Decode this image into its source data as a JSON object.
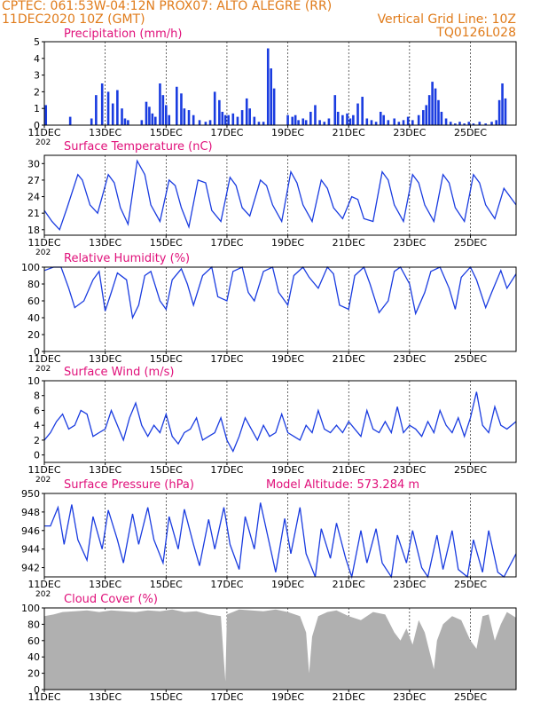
{
  "header": {
    "line1_left": "CPTEC:   061:53W-04:12N   PROX07: ALTO ALEGRE (RR)",
    "line2_left": "11DEC2020 10Z (GMT)",
    "line2_right": "Vertical Grid Line: 10Z",
    "line3_right": "TQ0126L028"
  },
  "colors": {
    "header": "#e07b1a",
    "title": "#e0107a",
    "series": "#1a3ce0",
    "cloud": "#b0b0b0",
    "axis": "#000000"
  },
  "x_axis": {
    "ticks": [
      "11DEC",
      "13DEC",
      "15DEC",
      "17DEC",
      "19DEC",
      "21DEC",
      "23DEC",
      "25DEC"
    ],
    "tick_days": [
      0,
      2,
      4,
      6,
      8,
      10,
      12,
      14
    ],
    "range_days": [
      0,
      15.5
    ],
    "year_label": "202"
  },
  "chart_data": [
    {
      "type": "bar",
      "title": "Precipitation (mm/h)",
      "ylim": [
        0,
        5
      ],
      "yticks": [
        0,
        1,
        2,
        3,
        4,
        5
      ],
      "x": [
        0.05,
        0.85,
        1.55,
        1.7,
        1.9,
        2.1,
        2.25,
        2.4,
        2.55,
        2.65,
        2.75,
        3.2,
        3.35,
        3.45,
        3.55,
        3.65,
        3.8,
        3.9,
        4.0,
        4.1,
        4.35,
        4.5,
        4.6,
        4.75,
        4.9,
        5.1,
        5.3,
        5.45,
        5.6,
        5.75,
        5.85,
        5.95,
        6.05,
        6.2,
        6.35,
        6.5,
        6.65,
        6.75,
        6.9,
        7.05,
        7.2,
        7.35,
        7.45,
        7.55,
        8.0,
        8.15,
        8.25,
        8.35,
        8.5,
        8.6,
        8.75,
        8.9,
        9.05,
        9.2,
        9.35,
        9.55,
        9.65,
        9.8,
        9.95,
        10.05,
        10.15,
        10.3,
        10.45,
        10.6,
        10.75,
        10.9,
        11.05,
        11.15,
        11.3,
        11.5,
        11.65,
        11.8,
        11.95,
        12.1,
        12.3,
        12.45,
        12.55,
        12.65,
        12.75,
        12.85,
        12.95,
        13.05,
        13.2,
        13.35,
        13.5,
        13.65,
        13.8,
        13.95,
        14.1,
        14.3,
        14.5,
        14.7,
        14.85,
        14.95,
        15.05,
        15.15
      ],
      "values": [
        1.2,
        0.5,
        0.4,
        1.8,
        2.5,
        2.0,
        1.3,
        2.1,
        1.0,
        0.4,
        0.3,
        0.3,
        1.4,
        1.1,
        0.7,
        0.5,
        2.5,
        1.8,
        1.2,
        0.6,
        2.3,
        1.9,
        1.0,
        0.9,
        0.6,
        0.3,
        0.2,
        0.3,
        2.0,
        1.5,
        0.8,
        0.6,
        0.6,
        0.7,
        0.5,
        0.9,
        1.6,
        1.0,
        0.5,
        0.2,
        0.2,
        4.6,
        3.4,
        2.2,
        0.6,
        0.5,
        0.6,
        0.3,
        0.4,
        0.3,
        0.8,
        1.2,
        0.3,
        0.2,
        0.4,
        1.8,
        0.8,
        0.6,
        0.7,
        0.4,
        0.6,
        1.3,
        1.7,
        0.4,
        0.3,
        0.2,
        0.8,
        0.6,
        0.3,
        0.4,
        0.2,
        0.3,
        0.5,
        0.3,
        0.6,
        0.9,
        1.2,
        1.8,
        2.6,
        2.2,
        1.5,
        0.8,
        0.4,
        0.2,
        0.1,
        0.2,
        0.1,
        0.2,
        0.1,
        0.2,
        0.1,
        0.2,
        0.3,
        1.5,
        2.5,
        1.6
      ]
    },
    {
      "type": "line",
      "title": "Surface Temperature (nC)",
      "ylim": [
        17,
        31.5
      ],
      "yticks": [
        18,
        21,
        24,
        27,
        30
      ],
      "x": [
        0,
        0.25,
        0.5,
        0.75,
        1.1,
        1.25,
        1.5,
        1.75,
        2.1,
        2.3,
        2.5,
        2.75,
        3.05,
        3.3,
        3.5,
        3.8,
        4.1,
        4.3,
        4.5,
        4.75,
        5.05,
        5.3,
        5.5,
        5.8,
        6.1,
        6.3,
        6.5,
        6.75,
        7.1,
        7.3,
        7.5,
        7.8,
        8.1,
        8.3,
        8.5,
        8.8,
        9.1,
        9.3,
        9.5,
        9.8,
        10.1,
        10.3,
        10.5,
        10.8,
        11.1,
        11.3,
        11.5,
        11.8,
        12.1,
        12.3,
        12.5,
        12.8,
        13.1,
        13.3,
        13.5,
        13.8,
        14.1,
        14.3,
        14.5,
        14.8,
        15.1,
        15.5
      ],
      "values": [
        21.5,
        19.5,
        18.0,
        22.0,
        28.0,
        27.0,
        22.5,
        21.0,
        28.0,
        26.5,
        22.0,
        19.0,
        30.5,
        28.0,
        22.5,
        19.5,
        27.0,
        26.0,
        22.0,
        18.5,
        27.0,
        26.5,
        21.5,
        19.5,
        27.5,
        26.0,
        22.0,
        20.5,
        27.0,
        26.0,
        22.5,
        19.5,
        28.5,
        26.5,
        22.5,
        19.5,
        27.0,
        25.5,
        22.0,
        20.0,
        24.0,
        23.5,
        20.0,
        19.5,
        28.5,
        27.0,
        22.5,
        19.5,
        28.0,
        26.5,
        22.5,
        19.5,
        28.0,
        26.5,
        22.0,
        19.5,
        28.0,
        26.5,
        22.5,
        20.0,
        25.5,
        22.5
      ]
    },
    {
      "type": "line",
      "title": "Relative Humidity (%)",
      "ylim": [
        0,
        100
      ],
      "yticks": [
        0,
        20,
        40,
        60,
        80,
        100
      ],
      "x": [
        0,
        0.3,
        0.55,
        0.8,
        1.0,
        1.3,
        1.6,
        1.8,
        2.0,
        2.2,
        2.4,
        2.7,
        2.9,
        3.1,
        3.3,
        3.5,
        3.8,
        4.0,
        4.2,
        4.5,
        4.7,
        4.9,
        5.2,
        5.5,
        5.7,
        6.0,
        6.2,
        6.5,
        6.7,
        6.9,
        7.2,
        7.5,
        7.7,
        8.0,
        8.2,
        8.5,
        8.7,
        9.0,
        9.3,
        9.5,
        9.7,
        10.0,
        10.2,
        10.5,
        10.7,
        11.0,
        11.3,
        11.5,
        11.7,
        12.0,
        12.2,
        12.5,
        12.7,
        13.0,
        13.3,
        13.5,
        13.7,
        14.0,
        14.2,
        14.5,
        14.7,
        15.0,
        15.2,
        15.5
      ],
      "values": [
        96,
        100,
        100,
        75,
        52,
        60,
        85,
        95,
        48,
        70,
        93,
        85,
        40,
        55,
        90,
        95,
        60,
        50,
        85,
        98,
        80,
        55,
        90,
        100,
        65,
        60,
        95,
        100,
        70,
        60,
        95,
        100,
        70,
        55,
        90,
        100,
        88,
        75,
        100,
        92,
        55,
        50,
        90,
        100,
        80,
        46,
        60,
        95,
        100,
        80,
        45,
        70,
        95,
        100,
        75,
        50,
        88,
        100,
        85,
        52,
        70,
        96,
        75,
        92
      ]
    },
    {
      "type": "line",
      "title": "Surface Wind (m/s)",
      "ylim": [
        -1,
        10
      ],
      "yticks": [
        0,
        2,
        4,
        6,
        8,
        10
      ],
      "x": [
        0,
        0.2,
        0.4,
        0.6,
        0.8,
        1.0,
        1.2,
        1.4,
        1.6,
        1.8,
        2.0,
        2.2,
        2.4,
        2.6,
        2.8,
        3.0,
        3.2,
        3.4,
        3.6,
        3.8,
        4.0,
        4.2,
        4.4,
        4.6,
        4.8,
        5.0,
        5.2,
        5.4,
        5.6,
        5.8,
        6.0,
        6.2,
        6.4,
        6.6,
        6.8,
        7.0,
        7.2,
        7.4,
        7.6,
        7.8,
        8.0,
        8.2,
        8.4,
        8.6,
        8.8,
        9.0,
        9.2,
        9.4,
        9.6,
        9.8,
        10.0,
        10.2,
        10.4,
        10.6,
        10.8,
        11.0,
        11.2,
        11.4,
        11.6,
        11.8,
        12.0,
        12.2,
        12.4,
        12.6,
        12.8,
        13.0,
        13.2,
        13.4,
        13.6,
        13.8,
        14.0,
        14.2,
        14.4,
        14.6,
        14.8,
        15.0,
        15.2,
        15.5
      ],
      "values": [
        2,
        3,
        4.5,
        5.5,
        3.5,
        4,
        6,
        5.5,
        2.5,
        3,
        3.5,
        6,
        4,
        2,
        5,
        7,
        4,
        2.5,
        4,
        3,
        5.5,
        2.5,
        1.5,
        3,
        3.5,
        5,
        2,
        2.5,
        3,
        5,
        2,
        0.5,
        2.5,
        5,
        3.5,
        2,
        4,
        2.5,
        3,
        5.5,
        3,
        2.5,
        2,
        4,
        3,
        6,
        3.5,
        3,
        4,
        3,
        4.5,
        3.5,
        2.5,
        6,
        3.5,
        3,
        4.5,
        3,
        6.5,
        3,
        4,
        3.5,
        2.5,
        4.5,
        3,
        6,
        4,
        3,
        5,
        2.5,
        5,
        8.5,
        4,
        3,
        6.5,
        4,
        3.5,
        4.5
      ]
    },
    {
      "type": "line",
      "title": "Surface Pressure (hPa)",
      "annotation": "Model Altitude: 573.284 m",
      "ylim": [
        941,
        950
      ],
      "yticks": [
        942,
        944,
        946,
        948,
        950
      ],
      "x": [
        0,
        0.2,
        0.45,
        0.65,
        0.9,
        1.1,
        1.4,
        1.6,
        1.9,
        2.1,
        2.4,
        2.6,
        2.9,
        3.1,
        3.4,
        3.6,
        3.9,
        4.1,
        4.4,
        4.6,
        4.9,
        5.1,
        5.4,
        5.6,
        5.9,
        6.1,
        6.4,
        6.6,
        6.9,
        7.1,
        7.4,
        7.6,
        7.9,
        8.1,
        8.4,
        8.6,
        8.9,
        9.1,
        9.4,
        9.6,
        9.9,
        10.1,
        10.4,
        10.6,
        10.9,
        11.1,
        11.4,
        11.6,
        11.9,
        12.1,
        12.4,
        12.6,
        12.9,
        13.1,
        13.4,
        13.6,
        13.9,
        14.1,
        14.4,
        14.6,
        14.9,
        15.1,
        15.5
      ],
      "values": [
        946.5,
        946.5,
        948.5,
        944.5,
        948.8,
        945,
        942.8,
        947.5,
        944,
        948.2,
        945,
        942.5,
        947.8,
        944.5,
        948.5,
        945,
        942.5,
        947.5,
        944,
        948.3,
        944.5,
        942.2,
        947.2,
        944,
        948.5,
        944.5,
        941.8,
        947.5,
        944,
        949,
        944.5,
        941.5,
        947.3,
        943.5,
        948.5,
        943.5,
        940.5,
        946.2,
        943,
        946.8,
        943,
        940.5,
        946,
        942.5,
        946.2,
        942.5,
        940,
        945.5,
        942.5,
        946,
        942,
        940.5,
        945.5,
        941.8,
        946,
        941.8,
        940,
        945,
        941.5,
        946,
        941.5,
        940.2,
        943.5
      ]
    },
    {
      "type": "area",
      "title": "Cloud Cover (%)",
      "ylim": [
        0,
        100
      ],
      "yticks": [
        0,
        20,
        40,
        60,
        80,
        100
      ],
      "x": [
        0,
        0.3,
        0.6,
        1.0,
        1.4,
        1.8,
        2.2,
        2.6,
        3.0,
        3.4,
        3.8,
        4.2,
        4.6,
        5.0,
        5.4,
        5.8,
        5.9,
        5.95,
        6.0,
        6.4,
        6.8,
        7.2,
        7.6,
        8.0,
        8.4,
        8.6,
        8.7,
        8.8,
        9.0,
        9.3,
        9.6,
        10.0,
        10.4,
        10.8,
        11.2,
        11.5,
        11.7,
        11.9,
        12.1,
        12.3,
        12.5,
        12.7,
        12.8,
        12.9,
        13.1,
        13.4,
        13.7,
        14.0,
        14.2,
        14.4,
        14.6,
        14.8,
        15.0,
        15.2,
        15.5
      ],
      "values": [
        90,
        92,
        95,
        96,
        97,
        95,
        97,
        96,
        95,
        97,
        96,
        98,
        95,
        96,
        92,
        90,
        35,
        10,
        92,
        98,
        97,
        96,
        98,
        95,
        90,
        70,
        20,
        65,
        90,
        95,
        97,
        90,
        85,
        95,
        92,
        70,
        60,
        75,
        55,
        85,
        70,
        40,
        25,
        60,
        80,
        90,
        85,
        60,
        50,
        90,
        92,
        60,
        80,
        95,
        88
      ]
    }
  ]
}
